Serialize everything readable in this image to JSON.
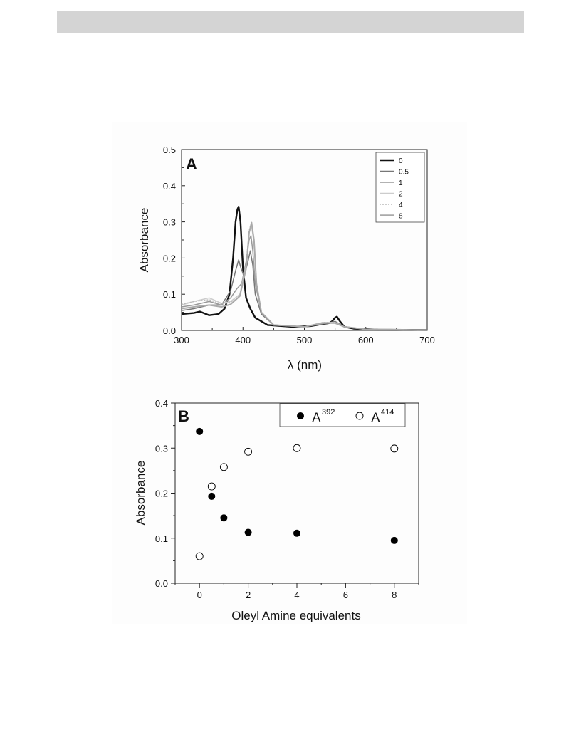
{
  "colors": {
    "header_bar": "#d4d4d4",
    "figure_bg": "#fdfdfd"
  },
  "chart_data": [
    {
      "type": "line",
      "panel_label": "A",
      "xlabel": "λ (nm)",
      "ylabel": "Absorbance",
      "xlim": [
        300,
        700
      ],
      "ylim": [
        0,
        0.5
      ],
      "xticks": [
        300,
        400,
        500,
        600,
        700
      ],
      "yticks": [
        0.0,
        0.1,
        0.2,
        0.3,
        0.4,
        0.5
      ],
      "ytick_labels": [
        "0.0",
        "0.1",
        "0.2",
        "0.3",
        "0.4",
        "0.5"
      ],
      "legend_position": "top-right",
      "series": [
        {
          "name": "0",
          "color": "#111111",
          "dash": "solid",
          "x": [
            300,
            320,
            330,
            345,
            360,
            370,
            378,
            384,
            388,
            391,
            393,
            396,
            400,
            405,
            412,
            420,
            440,
            480,
            510,
            530,
            540,
            545,
            550,
            553,
            558,
            565,
            580,
            620,
            700
          ],
          "y": [
            0.045,
            0.048,
            0.052,
            0.042,
            0.045,
            0.06,
            0.1,
            0.2,
            0.3,
            0.335,
            0.342,
            0.3,
            0.17,
            0.09,
            0.06,
            0.035,
            0.015,
            0.01,
            0.012,
            0.018,
            0.02,
            0.025,
            0.035,
            0.038,
            0.025,
            0.01,
            0.005,
            0.002,
            0.001
          ]
        },
        {
          "name": "0.5",
          "color": "#777777",
          "dash": "solid",
          "x": [
            300,
            320,
            345,
            365,
            380,
            388,
            393,
            397,
            402,
            408,
            412,
            416,
            420,
            430,
            450,
            500,
            530,
            550,
            565,
            600,
            700
          ],
          "y": [
            0.055,
            0.06,
            0.07,
            0.07,
            0.11,
            0.165,
            0.195,
            0.17,
            0.15,
            0.19,
            0.22,
            0.18,
            0.1,
            0.045,
            0.015,
            0.01,
            0.018,
            0.025,
            0.01,
            0.003,
            0.001
          ]
        },
        {
          "name": "1",
          "color": "#999999",
          "dash": "solid",
          "x": [
            300,
            320,
            345,
            365,
            380,
            390,
            398,
            405,
            410,
            413,
            416,
            420,
            430,
            450,
            500,
            530,
            550,
            565,
            600,
            700
          ],
          "y": [
            0.065,
            0.07,
            0.08,
            0.07,
            0.09,
            0.115,
            0.13,
            0.19,
            0.25,
            0.262,
            0.22,
            0.13,
            0.05,
            0.015,
            0.01,
            0.02,
            0.022,
            0.01,
            0.003,
            0.001
          ]
        },
        {
          "name": "2",
          "color": "#cccccc",
          "dash": "solid",
          "x": [
            300,
            320,
            345,
            365,
            380,
            395,
            405,
            410,
            414,
            418,
            422,
            430,
            450,
            500,
            530,
            550,
            565,
            600,
            700
          ],
          "y": [
            0.07,
            0.08,
            0.09,
            0.075,
            0.08,
            0.1,
            0.18,
            0.27,
            0.29,
            0.24,
            0.13,
            0.05,
            0.015,
            0.01,
            0.022,
            0.022,
            0.01,
            0.003,
            0.001
          ]
        },
        {
          "name": "4",
          "color": "#bbbbbb",
          "dash": "dotted",
          "x": [
            300,
            320,
            345,
            365,
            380,
            395,
            405,
            410,
            414,
            418,
            422,
            430,
            450,
            500,
            530,
            550,
            565,
            600,
            700
          ],
          "y": [
            0.072,
            0.08,
            0.085,
            0.072,
            0.078,
            0.098,
            0.18,
            0.275,
            0.3,
            0.25,
            0.13,
            0.05,
            0.015,
            0.01,
            0.022,
            0.022,
            0.01,
            0.003,
            0.001
          ]
        },
        {
          "name": "8",
          "color": "#aaaaaa",
          "dash": "solid",
          "x": [
            300,
            320,
            345,
            365,
            380,
            395,
            405,
            410,
            414,
            418,
            422,
            430,
            450,
            500,
            530,
            550,
            565,
            600,
            700
          ],
          "y": [
            0.06,
            0.065,
            0.07,
            0.065,
            0.072,
            0.095,
            0.17,
            0.27,
            0.298,
            0.25,
            0.13,
            0.05,
            0.015,
            0.01,
            0.02,
            0.02,
            0.01,
            0.003,
            0.001
          ]
        }
      ]
    },
    {
      "type": "scatter",
      "panel_label": "B",
      "xlabel": "Oleyl Amine equivalents",
      "ylabel": "Absorbance",
      "xlim": [
        -1,
        9
      ],
      "ylim": [
        0,
        0.4
      ],
      "xticks": [
        0,
        2,
        4,
        6,
        8
      ],
      "yticks": [
        0.0,
        0.1,
        0.2,
        0.3,
        0.4
      ],
      "ytick_labels": [
        "0.0",
        "0.1",
        "0.2",
        "0.3",
        "0.4"
      ],
      "legend_position": "top-right",
      "series": [
        {
          "name": "A",
          "superscript": "392",
          "marker": "filled-circle",
          "x": [
            0,
            0.5,
            1,
            2,
            4,
            8
          ],
          "y": [
            0.337,
            0.193,
            0.145,
            0.113,
            0.111,
            0.095
          ]
        },
        {
          "name": "A",
          "superscript": "414",
          "marker": "open-circle",
          "x": [
            0,
            0.5,
            1,
            2,
            4,
            8
          ],
          "y": [
            0.06,
            0.215,
            0.258,
            0.292,
            0.3,
            0.299
          ]
        }
      ]
    }
  ]
}
